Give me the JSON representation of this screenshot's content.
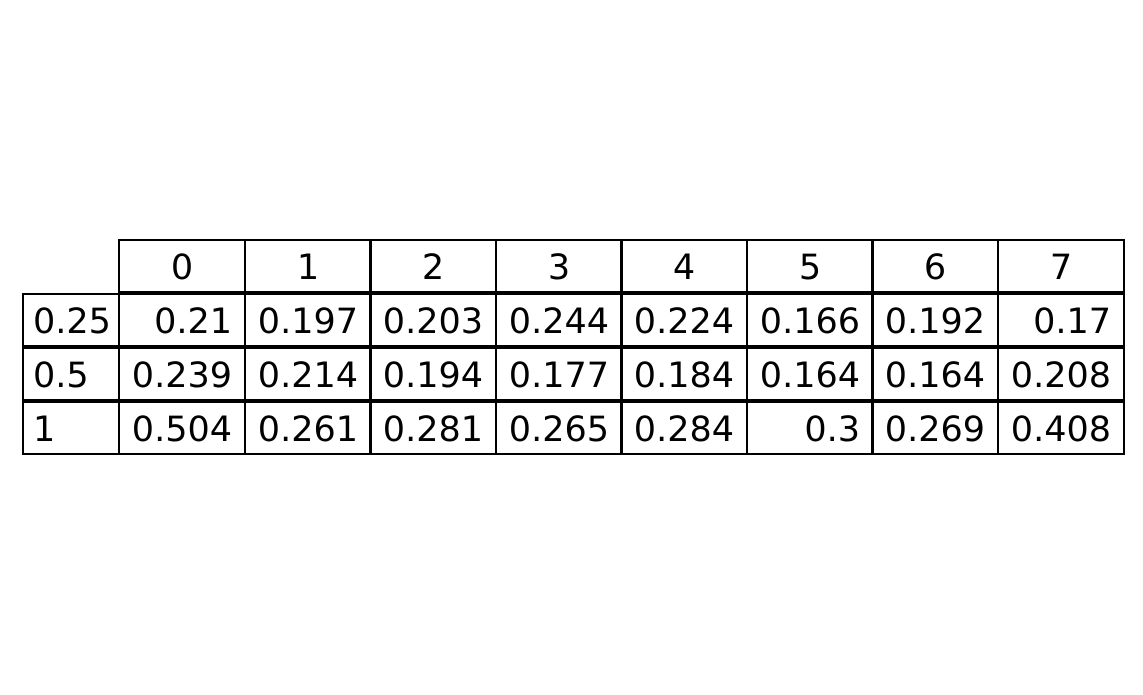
{
  "chart_data": {
    "type": "table",
    "col_labels": [
      "0",
      "1",
      "2",
      "3",
      "4",
      "5",
      "6",
      "7"
    ],
    "row_labels": [
      "0.25",
      "0.5",
      "1"
    ],
    "cells": [
      [
        "0.21",
        "0.197",
        "0.203",
        "0.244",
        "0.224",
        "0.166",
        "0.192",
        "0.17"
      ],
      [
        "0.239",
        "0.214",
        "0.194",
        "0.177",
        "0.184",
        "0.164",
        "0.164",
        "0.208"
      ],
      [
        "0.504",
        "0.261",
        "0.281",
        "0.265",
        "0.284",
        "0.3",
        "0.269",
        "0.408"
      ]
    ]
  },
  "colors": {
    "border": "#000000",
    "text": "#000000",
    "background": "#ffffff"
  }
}
